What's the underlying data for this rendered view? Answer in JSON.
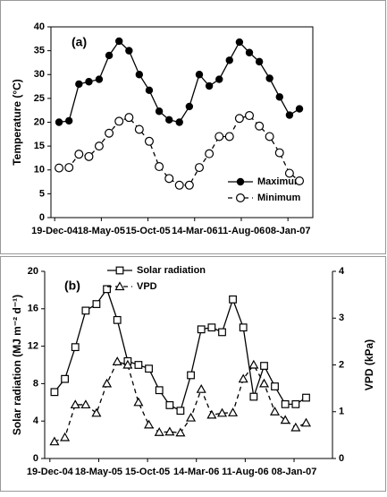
{
  "chart_data": [
    {
      "type": "line",
      "panel_label": "(a)",
      "y_label": "Temperature  (°C)",
      "x": [
        14,
        46,
        78,
        110,
        143,
        175,
        207,
        239,
        272,
        304,
        336,
        368,
        401,
        433,
        465,
        497,
        529,
        562,
        594,
        626,
        658,
        691,
        723,
        755,
        787
      ],
      "xlim": [
        -12,
        830
      ],
      "xticks": [
        {
          "value": 0,
          "label": "19-Dec-04"
        },
        {
          "value": 150,
          "label": "18-May-05"
        },
        {
          "value": 300,
          "label": "15-Oct-05"
        },
        {
          "value": 450,
          "label": "14-Mar-06"
        },
        {
          "value": 600,
          "label": "11-Aug-06"
        },
        {
          "value": 750,
          "label": "08-Jan-07"
        }
      ],
      "ylim": [
        0,
        40
      ],
      "yticks": [
        0,
        5,
        10,
        15,
        20,
        25,
        30,
        35,
        40
      ],
      "legend": "lower-right",
      "series": [
        {
          "name": "Maximum",
          "color": "#000000",
          "marker": "filled-circle",
          "dashed": false,
          "values": [
            20,
            20.3,
            28,
            28.5,
            29,
            34,
            37,
            35,
            30,
            26.7,
            22.3,
            20.5,
            20,
            23.3,
            30,
            27.6,
            29,
            33,
            36.8,
            34.6,
            32.7,
            29.2,
            25.3,
            21.5,
            22.8
          ]
        },
        {
          "name": "Minimum",
          "color": "#000000",
          "marker": "open-circle",
          "dashed": true,
          "values": [
            10.4,
            10.5,
            13.3,
            12.8,
            15,
            17.7,
            20.2,
            21,
            18.5,
            16,
            10.7,
            8.2,
            6.8,
            6.8,
            10.5,
            13.4,
            17,
            17,
            20.8,
            21.4,
            19.2,
            17,
            13.6,
            9.3,
            7.7
          ]
        }
      ]
    },
    {
      "type": "line",
      "panel_label": "(b)",
      "y_label": "Solar radiation  (MJ m⁻² d⁻¹)",
      "y2_label": "VPD  (kPa)",
      "x": [
        14,
        46,
        78,
        110,
        143,
        175,
        207,
        239,
        272,
        304,
        336,
        368,
        401,
        433,
        465,
        497,
        529,
        562,
        594,
        626,
        658,
        691,
        723,
        755,
        787
      ],
      "xlim": [
        -16,
        868
      ],
      "xticks": [
        {
          "value": 0,
          "label": "19-Dec-04"
        },
        {
          "value": 150,
          "label": "18-May-05"
        },
        {
          "value": 300,
          "label": "15-Oct-05"
        },
        {
          "value": 450,
          "label": "14-Mar-06"
        },
        {
          "value": 600,
          "label": "11-Aug-06"
        },
        {
          "value": 750,
          "label": "08-Jan-07"
        }
      ],
      "ylim": [
        0,
        20
      ],
      "yticks": [
        0,
        4,
        8,
        12,
        16,
        20
      ],
      "y2lim": [
        0,
        4
      ],
      "y2ticks": [
        0,
        1,
        2,
        3,
        4
      ],
      "legend": "upper-center",
      "series": [
        {
          "name": "Solar  radiation",
          "color": "#000000",
          "marker": "open-square",
          "dashed": false,
          "values": [
            7.1,
            8.5,
            11.9,
            15.8,
            16.5,
            18.1,
            14.8,
            10.4,
            10.0,
            9.6,
            7.3,
            5.7,
            5.1,
            8.9,
            13.8,
            14.0,
            13.5,
            17.0,
            14.0,
            6.6,
            9.9,
            7.7,
            5.8,
            5.8,
            6.5
          ]
        },
        {
          "name": "VPD",
          "color": "#000000",
          "marker": "open-triangle",
          "dashed": true,
          "axis": "y2",
          "values": [
            0.36,
            0.45,
            1.15,
            1.15,
            0.97,
            1.6,
            2.07,
            2.0,
            1.2,
            0.72,
            0.56,
            0.57,
            0.55,
            0.87,
            1.48,
            0.93,
            0.97,
            0.98,
            1.7,
            2.0,
            1.6,
            1.0,
            0.82,
            0.66,
            0.76
          ]
        }
      ]
    }
  ]
}
